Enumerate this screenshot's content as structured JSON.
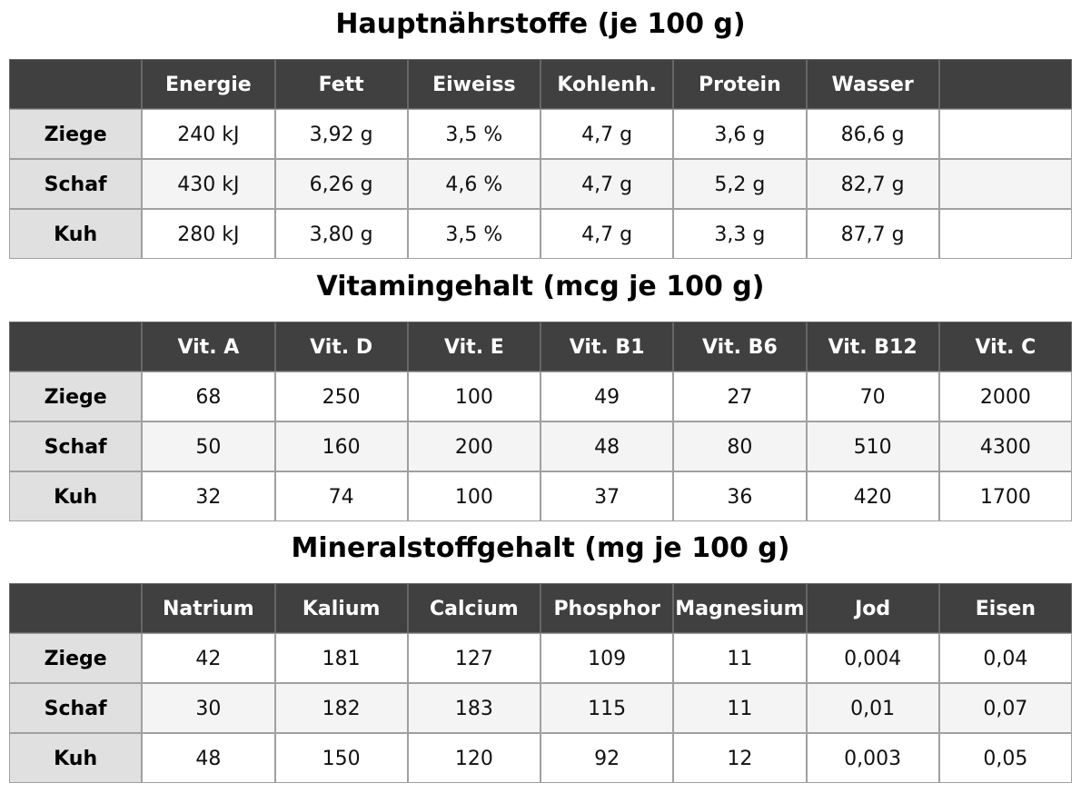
{
  "sections": [
    {
      "title": "Hauptnährstoffe (je 100 g)",
      "columns": [
        null,
        "Energie",
        "Fett",
        "Eiweiss",
        "Kohlenh.",
        "Protein",
        "Wasser",
        null
      ],
      "rows": [
        [
          "Ziege",
          "240 kJ",
          "3,92 g",
          "3,5 %",
          "4,7 g",
          "3,6 g",
          "86,6 g",
          null
        ],
        [
          "Schaf",
          "430 kJ",
          "6,26 g",
          "4,6 %",
          "4,7 g",
          "5,2 g",
          "82,7 g",
          null
        ],
        [
          "Kuh",
          "280 kJ",
          "3,80 g",
          "3,5 %",
          "4,7 g",
          "3,3 g",
          "87,7 g",
          null
        ]
      ]
    },
    {
      "title": "Vitamingehalt (mcg je 100 g)",
      "columns": [
        null,
        "Vit. A",
        "Vit. D",
        "Vit. E",
        "Vit. B1",
        "Vit. B6",
        "Vit. B12",
        "Vit. C"
      ],
      "rows": [
        [
          "Ziege",
          68,
          250,
          100,
          49,
          27,
          70,
          2000
        ],
        [
          "Schaf",
          50,
          160,
          200,
          48,
          80,
          510,
          4300
        ],
        [
          "Kuh",
          32,
          74,
          100,
          37,
          36,
          420,
          1700
        ]
      ]
    },
    {
      "title": "Mineralstoffgehalt (mg je 100 g)",
      "columns": [
        null,
        "Natrium",
        "Kalium",
        "Calcium",
        "Phosphor",
        "Magnesium",
        "Jod",
        "Eisen"
      ],
      "rows": [
        [
          "Ziege",
          42,
          181,
          127,
          109,
          11,
          "0,004",
          "0,04"
        ],
        [
          "Schaf",
          30,
          182,
          183,
          115,
          11,
          "0,01",
          "0,07"
        ],
        [
          "Kuh",
          48,
          150,
          120,
          92,
          12,
          "0,003",
          "0,05"
        ]
      ]
    }
  ]
}
